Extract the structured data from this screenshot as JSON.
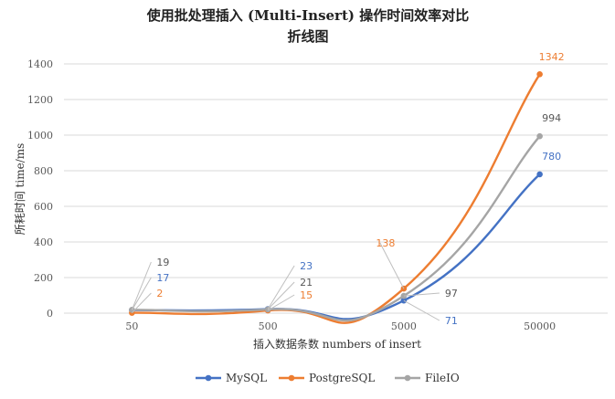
{
  "chart_data": {
    "type": "line",
    "title": "使用批处理插入 (Multi-Insert) 操作时间效率对比",
    "subtitle": "折线图",
    "xlabel": "插入数据条数 numbers of insert",
    "ylabel": "所耗时间 time/ms",
    "categories": [
      "50",
      "500",
      "5000",
      "50000"
    ],
    "ylim": [
      0,
      1400
    ],
    "yticks": [
      0,
      200,
      400,
      600,
      800,
      1000,
      1200,
      1400
    ],
    "grid": true,
    "smooth": true,
    "legend_position": "bottom",
    "series": [
      {
        "name": "MySQL",
        "color": "#4472C4",
        "values": [
          17,
          23,
          71,
          780
        ],
        "value_labels": [
          "17",
          "23",
          "71",
          "780"
        ]
      },
      {
        "name": "PostgreSQL",
        "color": "#ED7D31",
        "values": [
          2,
          15,
          138,
          1342
        ],
        "value_labels": [
          "2",
          "15",
          "138",
          "1342"
        ]
      },
      {
        "name": "FileIO",
        "color": "#A5A5A5",
        "values": [
          19,
          21,
          97,
          994
        ],
        "value_labels": [
          "19",
          "21",
          "97",
          "994"
        ]
      }
    ]
  }
}
